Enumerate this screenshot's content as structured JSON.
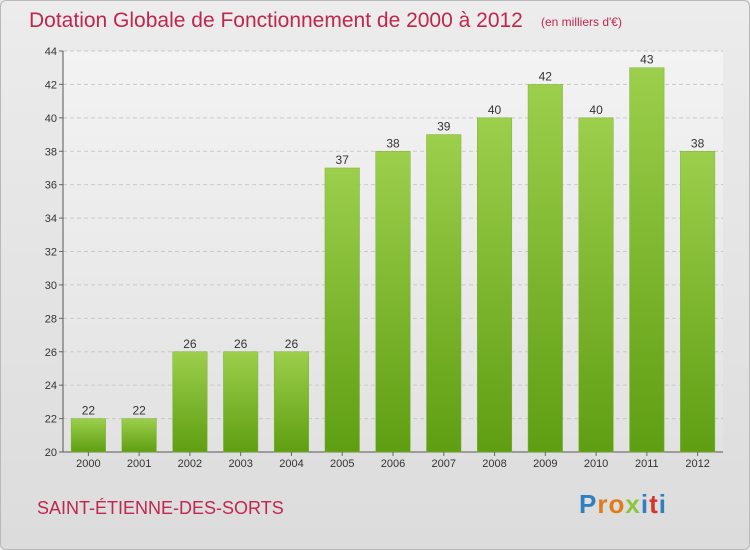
{
  "chart_data": {
    "type": "bar",
    "title": "Dotation Globale de Fonctionnement de 2000 à 2012",
    "subtitle": "(en milliers d'€)",
    "categories": [
      "2000",
      "2001",
      "2002",
      "2003",
      "2004",
      "2005",
      "2006",
      "2007",
      "2008",
      "2009",
      "2010",
      "2011",
      "2012"
    ],
    "values": [
      22,
      22,
      26,
      26,
      26,
      37,
      38,
      39,
      40,
      42,
      40,
      43,
      38
    ],
    "ylim": [
      20,
      44
    ],
    "yticks": [
      20,
      22,
      24,
      26,
      28,
      30,
      32,
      34,
      36,
      38,
      40,
      42,
      44
    ],
    "grid": true,
    "bar_color_top": "#9ccf4c",
    "bar_color_bottom": "#5f9e12"
  },
  "footer": {
    "city": "SAINT-ÉTIENNE-DES-SORTS",
    "logo_letters": [
      "P",
      "r",
      "o",
      "x",
      "i",
      "t",
      "i"
    ],
    "logo_colors": [
      "#2f7fc1",
      "#e07b1a",
      "#e07b1a",
      "#8cc63f",
      "#2f7fc1",
      "#d9322b",
      "#2f7fc1"
    ]
  },
  "colors": {
    "title": "#c0264f"
  }
}
